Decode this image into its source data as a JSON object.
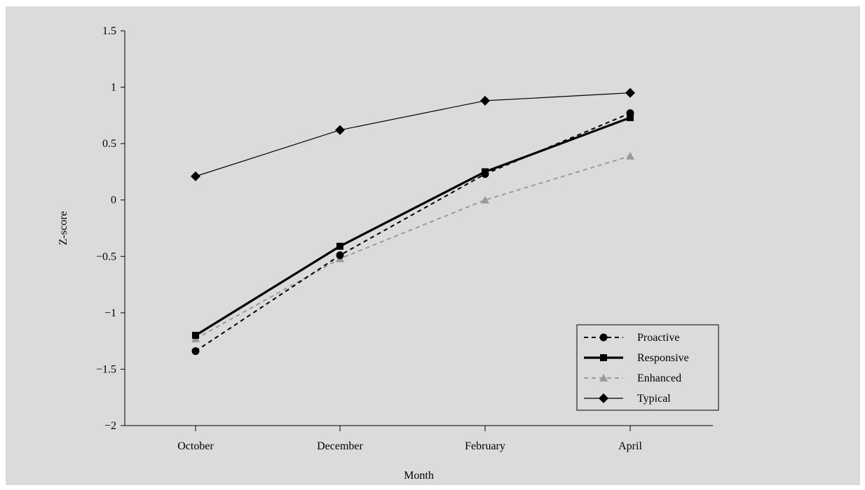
{
  "chart_data": {
    "type": "line",
    "title": "",
    "xlabel": "Month",
    "ylabel": "Z-score",
    "categories": [
      "October",
      "December",
      "February",
      "April"
    ],
    "ylim": [
      -2,
      1.5
    ],
    "yticks": [
      1.5,
      1,
      0.5,
      0,
      -0.5,
      -1,
      -1.5,
      -2
    ],
    "ytick_labels": [
      "1.5",
      "1",
      "0.5",
      "0",
      "−0.5",
      "−1",
      "−1.5",
      "−2"
    ],
    "grid": false,
    "legend_position": "bottom-right",
    "series": [
      {
        "name": "Proactive",
        "values": [
          -1.34,
          -0.49,
          0.23,
          0.77
        ],
        "color": "#000000",
        "line_style": "dashed",
        "marker": "circle",
        "line_weight": "medium"
      },
      {
        "name": "Responsive",
        "values": [
          -1.2,
          -0.41,
          0.25,
          0.73
        ],
        "color": "#000000",
        "line_style": "solid",
        "marker": "square",
        "line_weight": "heavy"
      },
      {
        "name": "Enhanced",
        "values": [
          -1.23,
          -0.52,
          0.0,
          0.39
        ],
        "color": "#9a9a9a",
        "line_style": "dashed",
        "marker": "triangle",
        "line_weight": "medium"
      },
      {
        "name": "Typical",
        "values": [
          0.21,
          0.62,
          0.88,
          0.95
        ],
        "color": "#000000",
        "line_style": "solid",
        "marker": "diamond",
        "line_weight": "thin"
      }
    ]
  }
}
